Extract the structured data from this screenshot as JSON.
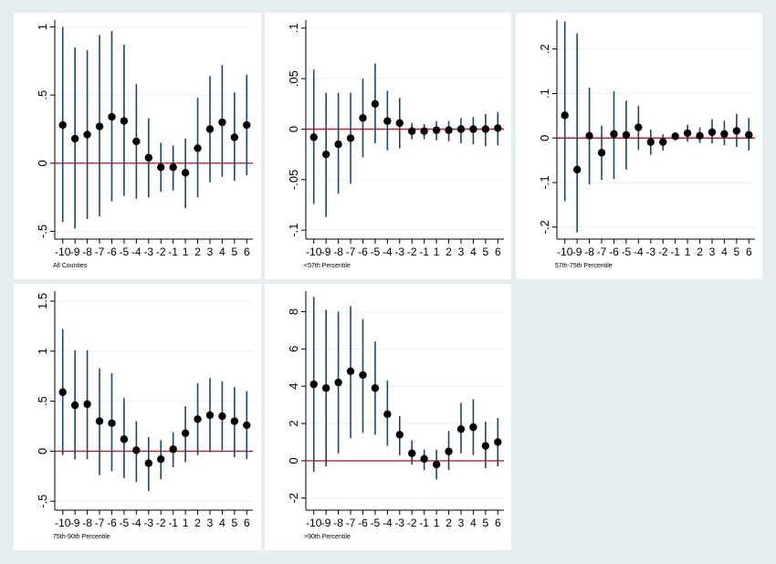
{
  "colors": {
    "background": "#e6edf0",
    "panel": "#ffffff",
    "ci_line": "#1a476f",
    "point": "#000000",
    "zero_line": "#b22234",
    "grid": "#eaf2f3"
  },
  "chart_data": [
    {
      "type": "scatter",
      "subtitle": "All Counties",
      "categories": [
        "-10",
        "-9",
        "-8",
        "-7",
        "-6",
        "-5",
        "-4",
        "-3",
        "-2",
        "-1",
        "1",
        "2",
        "3",
        "4",
        "5",
        "6"
      ],
      "ylim": [
        -0.55,
        1.05
      ],
      "yticks": [
        1,
        0.5,
        0,
        -0.5
      ],
      "ytick_labels": [
        "1",
        ".5",
        "0",
        "-.5"
      ],
      "grid": true,
      "estimates": [
        0.28,
        0.18,
        0.21,
        0.27,
        0.34,
        0.31,
        0.16,
        0.04,
        -0.03,
        -0.03,
        -0.07,
        0.11,
        0.25,
        0.3,
        0.19,
        0.28
      ],
      "ci_lower": [
        -0.43,
        -0.48,
        -0.41,
        -0.39,
        -0.28,
        -0.24,
        -0.26,
        -0.25,
        -0.21,
        -0.2,
        -0.33,
        -0.25,
        -0.14,
        -0.1,
        -0.13,
        -0.09
      ],
      "ci_upper": [
        1.0,
        0.85,
        0.83,
        0.94,
        0.97,
        0.87,
        0.58,
        0.33,
        0.15,
        0.13,
        0.18,
        0.48,
        0.64,
        0.72,
        0.52,
        0.65
      ]
    },
    {
      "type": "scatter",
      "subtitle": "<57th Percentile",
      "categories": [
        "-10",
        "-9",
        "-8",
        "-7",
        "-6",
        "-5",
        "-4",
        "-3",
        "-2",
        "-1",
        "1",
        "2",
        "3",
        "4",
        "5",
        "6"
      ],
      "ylim": [
        -0.108,
        0.108
      ],
      "yticks": [
        0.1,
        0.05,
        0,
        -0.05,
        -0.1
      ],
      "ytick_labels": [
        ".1",
        ".05",
        "0",
        "-.05",
        "-.1"
      ],
      "grid": true,
      "estimates": [
        -0.008,
        -0.025,
        -0.015,
        -0.009,
        0.011,
        0.025,
        0.008,
        0.006,
        -0.002,
        -0.002,
        -0.001,
        -0.001,
        0.0,
        0.0,
        0.0,
        0.001
      ],
      "ci_lower": [
        -0.074,
        -0.087,
        -0.064,
        -0.054,
        -0.028,
        -0.014,
        -0.021,
        -0.019,
        -0.01,
        -0.01,
        -0.011,
        -0.012,
        -0.014,
        -0.015,
        -0.017,
        -0.016
      ],
      "ci_upper": [
        0.059,
        0.036,
        0.036,
        0.036,
        0.05,
        0.065,
        0.038,
        0.031,
        0.006,
        0.005,
        0.008,
        0.008,
        0.011,
        0.012,
        0.015,
        0.017
      ]
    },
    {
      "type": "scatter",
      "subtitle": "57th-75th Percentile",
      "categories": [
        "-10",
        "-9",
        "-8",
        "-7",
        "-6",
        "-5",
        "-4",
        "-3",
        "-2",
        "-1",
        "1",
        "2",
        "3",
        "4",
        "5",
        "6"
      ],
      "ylim": [
        -0.225,
        0.265
      ],
      "yticks": [
        0.2,
        0.1,
        0,
        -0.1,
        -0.2
      ],
      "ytick_labels": [
        ".2",
        ".1",
        "0",
        "-.1",
        "-.2"
      ],
      "grid": true,
      "estimates": [
        0.051,
        -0.071,
        0.005,
        -0.033,
        0.009,
        0.007,
        0.024,
        -0.009,
        -0.009,
        0.004,
        0.011,
        0.005,
        0.013,
        0.009,
        0.016,
        0.007
      ],
      "ci_lower": [
        -0.142,
        -0.212,
        -0.104,
        -0.094,
        -0.092,
        -0.071,
        -0.027,
        -0.038,
        -0.028,
        -0.005,
        -0.008,
        -0.011,
        -0.012,
        -0.016,
        -0.02,
        -0.028
      ],
      "ci_upper": [
        0.262,
        0.235,
        0.113,
        0.028,
        0.105,
        0.084,
        0.072,
        0.019,
        0.008,
        0.013,
        0.03,
        0.024,
        0.042,
        0.039,
        0.054,
        0.045
      ]
    },
    {
      "type": "scatter",
      "subtitle": "75th-90th Percentile",
      "categories": [
        "-10",
        "-9",
        "-8",
        "-7",
        "-6",
        "-5",
        "-4",
        "-3",
        "-2",
        "-1",
        "1",
        "2",
        "3",
        "4",
        "5",
        "6"
      ],
      "ylim": [
        -0.58,
        1.6
      ],
      "yticks": [
        1.5,
        1,
        0.5,
        0,
        -0.5
      ],
      "ytick_labels": [
        "1.5",
        "1",
        ".5",
        "0",
        "-.5"
      ],
      "grid": true,
      "estimates": [
        0.59,
        0.46,
        0.47,
        0.3,
        0.28,
        0.12,
        0.01,
        -0.12,
        -0.08,
        0.02,
        0.18,
        0.32,
        0.36,
        0.35,
        0.3,
        0.26
      ],
      "ci_lower": [
        -0.04,
        -0.08,
        -0.08,
        -0.24,
        -0.2,
        -0.27,
        -0.31,
        -0.4,
        -0.28,
        -0.16,
        -0.11,
        -0.04,
        -0.01,
        0.01,
        -0.06,
        -0.08
      ],
      "ci_upper": [
        1.22,
        1.01,
        1.01,
        0.83,
        0.78,
        0.53,
        0.3,
        0.14,
        0.11,
        0.19,
        0.45,
        0.68,
        0.73,
        0.7,
        0.64,
        0.6
      ]
    },
    {
      "type": "scatter",
      "subtitle": ">90th Percentile",
      "categories": [
        "-10",
        "-9",
        "-8",
        "-7",
        "-6",
        "-5",
        "-4",
        "-3",
        "-2",
        "-1",
        "1",
        "2",
        "3",
        "4",
        "5",
        "6"
      ],
      "ylim": [
        -2.6,
        9.1
      ],
      "yticks": [
        8,
        6,
        4,
        2,
        0,
        -2
      ],
      "ytick_labels": [
        "8",
        "6",
        "4",
        "2",
        "0",
        "-2"
      ],
      "grid": true,
      "estimates": [
        4.1,
        3.9,
        4.2,
        4.8,
        4.6,
        3.9,
        2.5,
        1.4,
        0.4,
        0.1,
        -0.2,
        0.5,
        1.7,
        1.8,
        0.8,
        1.0
      ],
      "ci_lower": [
        -0.6,
        -0.3,
        0.4,
        1.2,
        1.5,
        1.4,
        0.8,
        0.3,
        -0.2,
        -0.5,
        -1.0,
        -0.5,
        0.4,
        0.3,
        -0.4,
        -0.3
      ],
      "ci_upper": [
        8.8,
        8.1,
        8.0,
        8.3,
        7.6,
        6.4,
        4.3,
        2.4,
        1.1,
        0.6,
        0.6,
        1.6,
        3.1,
        3.3,
        2.1,
        2.3
      ]
    }
  ]
}
